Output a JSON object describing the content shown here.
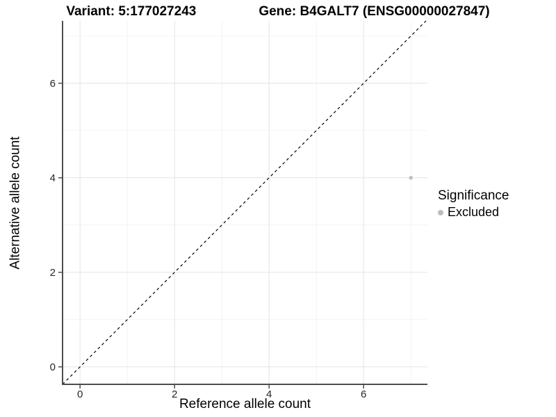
{
  "chart_data": {
    "type": "scatter",
    "title": {
      "variant": "Variant: 5:177027243",
      "gene": "Gene: B4GALT7 (ENSG00000027847)"
    },
    "xlabel": "Reference allele count",
    "ylabel": "Alternative allele count",
    "xlim": [
      -0.37,
      7.35
    ],
    "ylim": [
      -0.37,
      7.32
    ],
    "x_ticks": [
      0,
      2,
      4,
      6
    ],
    "y_ticks": [
      0,
      2,
      4,
      6
    ],
    "grid": {
      "major": [
        0,
        2,
        4,
        6
      ],
      "minor": [
        1,
        3,
        5,
        7
      ],
      "on": true
    },
    "reference_line": {
      "type": "identity",
      "style": "dashed",
      "equation": "y = x"
    },
    "series": [
      {
        "name": "Excluded",
        "color": "#bdbdbd",
        "points": [
          {
            "x": 7,
            "y": 4
          }
        ]
      }
    ],
    "legend": {
      "position": "right",
      "title": "Significance",
      "items": [
        {
          "label": "Excluded",
          "color": "#bdbdbd"
        }
      ]
    },
    "colors": {
      "grid_major": "#e4e4e4",
      "grid_minor": "#f0f0f0",
      "axis_line": "#4d4d4d",
      "dashed_line": "#000000",
      "point": "#bdbdbd",
      "background": "#ffffff"
    }
  }
}
